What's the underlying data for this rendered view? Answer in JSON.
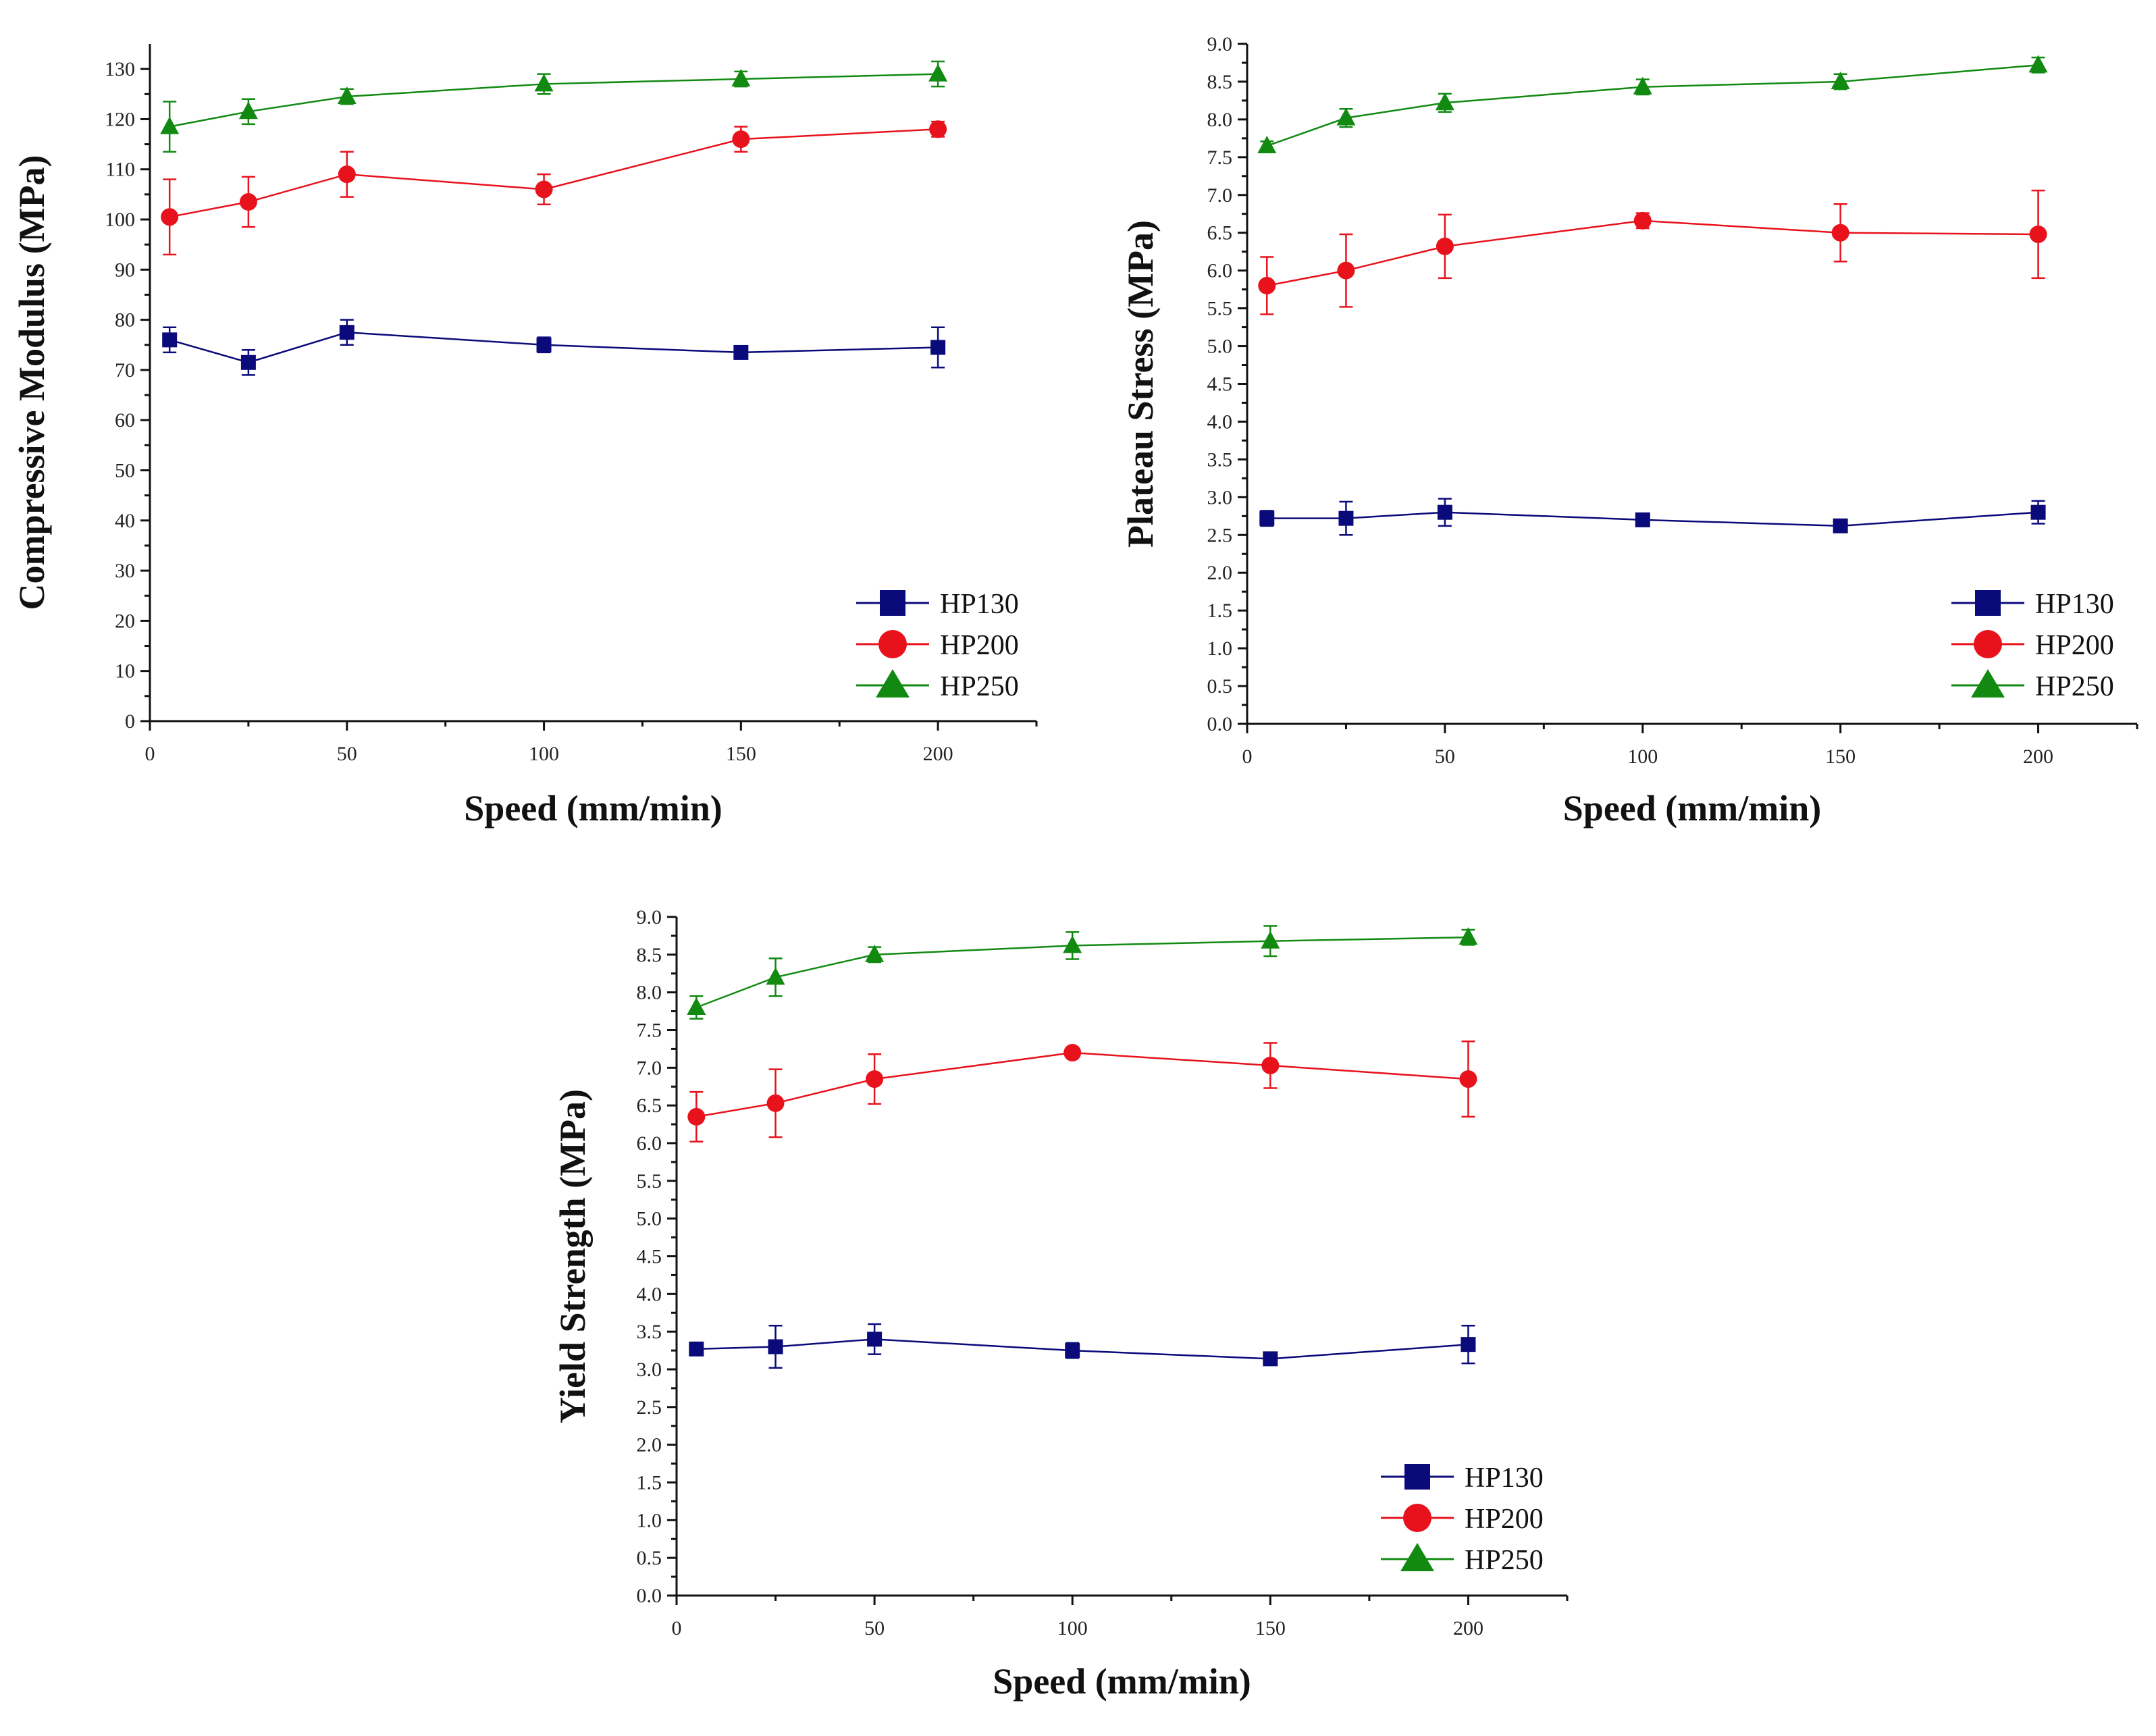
{
  "colors": {
    "HP130": "#0a0a7a",
    "HP200": "#e8121c",
    "HP250": "#128a12"
  },
  "chart_data": [
    {
      "type": "line",
      "xlabel": "Speed (mm/min)",
      "ylabel": "Compressive Modulus (MPa)",
      "xlim": [
        0,
        225
      ],
      "ylim": [
        0,
        135
      ],
      "xticks": [
        0,
        50,
        100,
        150,
        200
      ],
      "xtick_labels": [
        "0",
        "50",
        "100",
        "150",
        "200"
      ],
      "yticks": [
        0,
        10,
        20,
        30,
        40,
        50,
        60,
        70,
        80,
        90,
        100,
        110,
        120,
        130
      ],
      "ytick_labels": [
        "0",
        "10",
        "20",
        "30",
        "40",
        "50",
        "60",
        "70",
        "80",
        "90",
        "100",
        "110",
        "120",
        "130"
      ],
      "x": [
        5,
        25,
        50,
        100,
        150,
        200
      ],
      "legend_position": "bottom-right",
      "series": [
        {
          "name": "HP130",
          "marker": "square",
          "values": [
            76,
            71.5,
            77.5,
            75,
            73.5,
            74.5
          ],
          "errors": [
            2.5,
            2.5,
            2.5,
            1.5,
            1,
            4
          ]
        },
        {
          "name": "HP200",
          "marker": "circle",
          "values": [
            100.5,
            103.5,
            109,
            106,
            116,
            118
          ],
          "errors": [
            7.5,
            5,
            4.5,
            3,
            2.5,
            1.5
          ]
        },
        {
          "name": "HP250",
          "marker": "triangle",
          "values": [
            118.5,
            121.5,
            124.5,
            127,
            128,
            129
          ],
          "errors": [
            5,
            2.5,
            1.5,
            2,
            1.5,
            2.5
          ]
        }
      ]
    },
    {
      "type": "line",
      "xlabel": "Speed (mm/min)",
      "ylabel": "Plateau Stress (MPa)",
      "xlim": [
        0,
        225
      ],
      "ylim": [
        0,
        9
      ],
      "xticks": [
        0,
        50,
        100,
        150,
        200
      ],
      "xtick_labels": [
        "0",
        "50",
        "100",
        "150",
        "200"
      ],
      "yticks": [
        0,
        0.5,
        1,
        1.5,
        2,
        2.5,
        3,
        3.5,
        4,
        4.5,
        5,
        5.5,
        6,
        6.5,
        7,
        7.5,
        8,
        8.5,
        9
      ],
      "ytick_labels": [
        "0.0",
        "0.5",
        "1.0",
        "1.5",
        "2.0",
        "2.5",
        "3.0",
        "3.5",
        "4.0",
        "4.5",
        "5.0",
        "5.5",
        "6.0",
        "6.5",
        "7.0",
        "7.5",
        "8.0",
        "8.5",
        "9.0"
      ],
      "x": [
        5,
        25,
        50,
        100,
        150,
        200
      ],
      "legend_position": "bottom-right",
      "series": [
        {
          "name": "HP130",
          "marker": "square",
          "values": [
            2.72,
            2.72,
            2.8,
            2.7,
            2.62,
            2.8
          ],
          "errors": [
            0.1,
            0.22,
            0.18,
            0.06,
            0.05,
            0.15
          ]
        },
        {
          "name": "HP200",
          "marker": "circle",
          "values": [
            5.8,
            6.0,
            6.32,
            6.66,
            6.5,
            6.48
          ],
          "errors": [
            0.38,
            0.48,
            0.42,
            0.1,
            0.38,
            0.58
          ]
        },
        {
          "name": "HP250",
          "marker": "triangle",
          "values": [
            7.65,
            8.02,
            8.22,
            8.43,
            8.5,
            8.72
          ],
          "errors": [
            0.06,
            0.12,
            0.12,
            0.1,
            0.1,
            0.1
          ]
        }
      ]
    },
    {
      "type": "line",
      "xlabel": "Speed (mm/min)",
      "ylabel": "Yield Strength (MPa)",
      "xlim": [
        0,
        225
      ],
      "ylim": [
        0,
        9
      ],
      "xticks": [
        0,
        50,
        100,
        150,
        200
      ],
      "xtick_labels": [
        "0",
        "50",
        "100",
        "150",
        "200"
      ],
      "yticks": [
        0,
        0.5,
        1,
        1.5,
        2,
        2.5,
        3,
        3.5,
        4,
        4.5,
        5,
        5.5,
        6,
        6.5,
        7,
        7.5,
        8,
        8.5,
        9
      ],
      "ytick_labels": [
        "0.0",
        "0.5",
        "1.0",
        "1.5",
        "2.0",
        "2.5",
        "3.0",
        "3.5",
        "4.0",
        "4.5",
        "5.0",
        "5.5",
        "6.0",
        "6.5",
        "7.0",
        "7.5",
        "8.0",
        "8.5",
        "9.0"
      ],
      "x": [
        5,
        25,
        50,
        100,
        150,
        200
      ],
      "legend_position": "bottom-right",
      "series": [
        {
          "name": "HP130",
          "marker": "square",
          "values": [
            3.27,
            3.3,
            3.4,
            3.25,
            3.14,
            3.33
          ],
          "errors": [
            0.06,
            0.28,
            0.2,
            0.1,
            0.05,
            0.25
          ]
        },
        {
          "name": "HP200",
          "marker": "circle",
          "values": [
            6.35,
            6.53,
            6.85,
            7.2,
            7.03,
            6.85
          ],
          "errors": [
            0.33,
            0.45,
            0.33,
            0.06,
            0.3,
            0.5
          ]
        },
        {
          "name": "HP250",
          "marker": "triangle",
          "values": [
            7.8,
            8.2,
            8.5,
            8.62,
            8.68,
            8.73
          ],
          "errors": [
            0.15,
            0.25,
            0.1,
            0.18,
            0.2,
            0.1
          ]
        }
      ]
    }
  ]
}
